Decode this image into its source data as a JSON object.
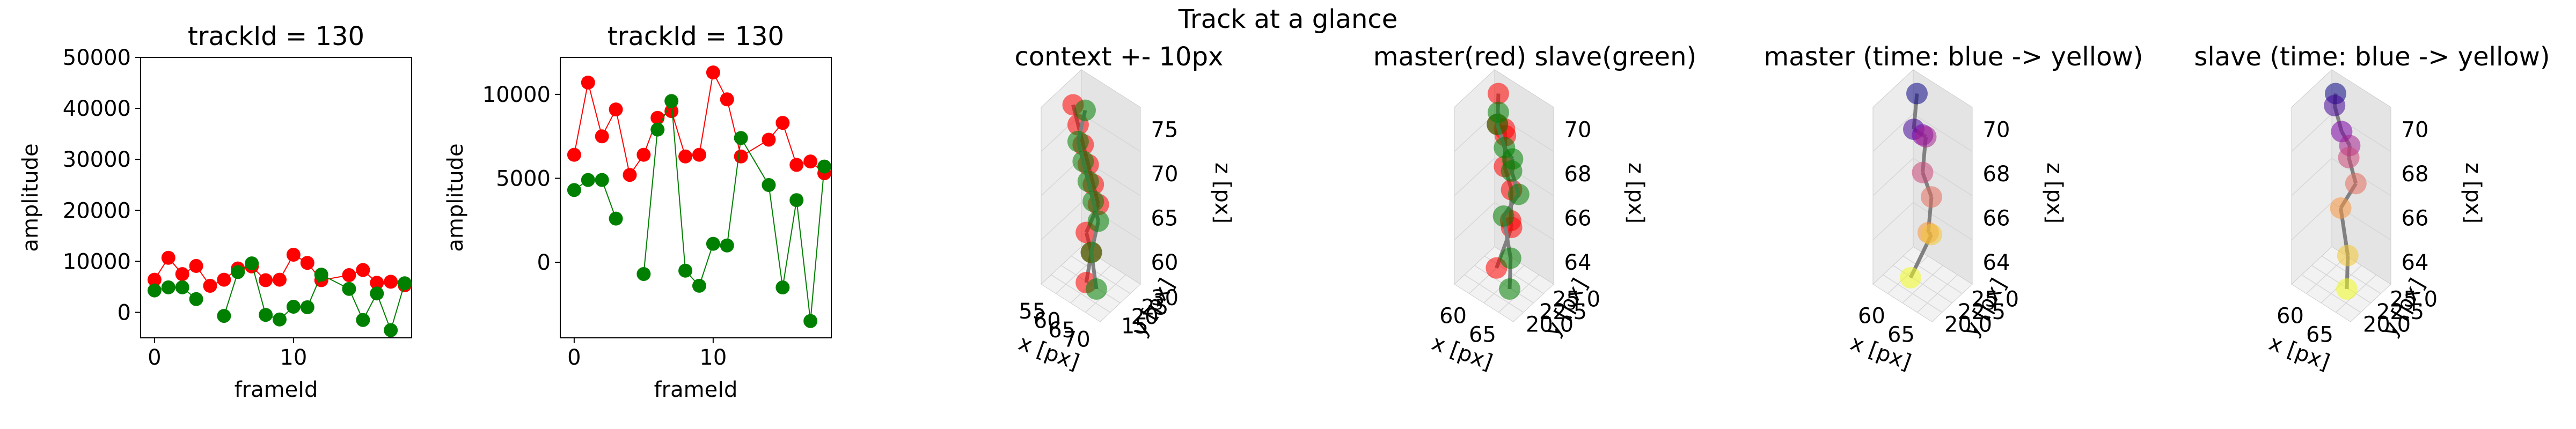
{
  "figure": {
    "title": "Track at a glance"
  },
  "chart_data": [
    {
      "type": "line",
      "title": "trackId = 130",
      "xlabel": "frameId",
      "ylabel": "amplitude",
      "xlim": [
        -1,
        18.5
      ],
      "ylim": [
        -5000,
        50000
      ],
      "xticks": [
        0,
        10
      ],
      "yticks": [
        0,
        10000,
        20000,
        30000,
        40000,
        50000
      ],
      "grid": false,
      "series": [
        {
          "color": "#ff0000",
          "x": [
            0,
            1,
            2,
            3,
            4,
            5,
            6,
            7,
            8,
            9,
            10,
            11,
            12,
            14,
            15,
            16,
            17,
            18
          ],
          "y": [
            6400,
            10700,
            7500,
            9100,
            5200,
            6400,
            8600,
            9000,
            6300,
            6400,
            11300,
            9700,
            6300,
            7300,
            8300,
            5800,
            6000,
            5300
          ]
        },
        {
          "color": "#008000",
          "x": [
            0,
            1,
            2,
            3,
            4,
            5,
            6,
            7,
            8,
            9,
            10,
            11,
            12,
            14,
            15,
            16,
            17,
            18
          ],
          "y": [
            4300,
            4900,
            4900,
            2600,
            null,
            -700,
            7900,
            9600,
            -500,
            -1400,
            1100,
            1000,
            7400,
            4600,
            -1500,
            3700,
            -3500,
            5700
          ]
        }
      ]
    },
    {
      "type": "line",
      "title": "trackId = 130",
      "xlabel": "frameId",
      "ylabel": "amplitude",
      "xlim": [
        -1,
        18.5
      ],
      "ylim": [
        -4500,
        12200
      ],
      "xticks": [
        0,
        10
      ],
      "yticks": [
        0,
        5000,
        10000
      ],
      "grid": false,
      "series": [
        {
          "color": "#ff0000",
          "x": [
            0,
            1,
            2,
            3,
            4,
            5,
            6,
            7,
            8,
            9,
            10,
            11,
            12,
            14,
            15,
            16,
            17,
            18
          ],
          "y": [
            6400,
            10700,
            7500,
            9100,
            5200,
            6400,
            8600,
            9000,
            6300,
            6400,
            11300,
            9700,
            6300,
            7300,
            8300,
            5800,
            6000,
            5300
          ]
        },
        {
          "color": "#008000",
          "x": [
            0,
            1,
            2,
            3,
            4,
            5,
            6,
            7,
            8,
            9,
            10,
            11,
            12,
            14,
            15,
            16,
            17,
            18
          ],
          "y": [
            4300,
            4900,
            4900,
            2600,
            null,
            -700,
            7900,
            9600,
            -500,
            -1400,
            1100,
            1000,
            7400,
            4600,
            -1500,
            3700,
            -3500,
            5700
          ]
        }
      ]
    },
    {
      "type": "scatter3d",
      "title": "context +- 10px",
      "xlabel": "x [px]",
      "ylabel": "y [px]",
      "zlabel": "z [px]",
      "xticks": [
        "55",
        "60",
        "65",
        "70"
      ],
      "yticks": [
        "15",
        "20",
        "25",
        "30"
      ],
      "zticks": [
        "60",
        "65",
        "70",
        "75"
      ],
      "series": [
        {
          "name": "",
          "color": "#ff0000",
          "points": [
            [
              59,
              22,
              71
            ],
            [
              60,
              22,
              70
            ],
            [
              61,
              22,
              69
            ],
            [
              62,
              22,
              68
            ],
            [
              63,
              22,
              67
            ],
            [
              64,
              22,
              66
            ],
            [
              64,
              21,
              65
            ],
            [
              65,
              21,
              64
            ],
            [
              64,
              21,
              62
            ]
          ]
        },
        {
          "name": "",
          "color": "#008000",
          "points": [
            [
              59,
              23,
              70
            ],
            [
              60,
              22,
              69
            ],
            [
              61,
              22,
              68
            ],
            [
              62,
              22,
              67
            ],
            [
              63,
              22,
              66
            ],
            [
              64,
              22,
              65
            ],
            [
              65,
              21,
              64
            ],
            [
              66,
              21,
              62
            ]
          ]
        }
      ]
    },
    {
      "type": "scatter3d",
      "title": "master(red) slave(green)",
      "xlabel": "x [px]",
      "ylabel": "y [px]",
      "zlabel": "z [px]",
      "xticks": [
        "60",
        "65"
      ],
      "yticks": [
        "20.0",
        "22.5",
        "25.0"
      ],
      "zticks": [
        "64",
        "66",
        "68",
        "70"
      ],
      "series": [
        {
          "name": "master",
          "color": "#ff0000",
          "points": [
            [
              60,
              23,
              71
            ],
            [
              61,
              22,
              70
            ],
            [
              62,
              22,
              70
            ],
            [
              61,
              23,
              69
            ],
            [
              62,
              22,
              68
            ],
            [
              63,
              22,
              67
            ],
            [
              64,
              21,
              66
            ],
            [
              63,
              22,
              65
            ],
            [
              62,
              21,
              63
            ]
          ]
        },
        {
          "name": "slave",
          "color": "#008000",
          "points": [
            [
              60,
              23,
              70
            ],
            [
              61,
              22,
              70
            ],
            [
              62,
              22,
              69
            ],
            [
              62,
              23,
              68
            ],
            [
              63,
              22,
              68
            ],
            [
              64,
              22,
              67
            ],
            [
              63,
              21,
              66
            ],
            [
              64,
              21,
              64
            ],
            [
              65,
              20,
              63
            ]
          ]
        }
      ]
    },
    {
      "type": "scatter3d",
      "title": "master (time: blue -> yellow)",
      "xlabel": "x [px]",
      "ylabel": "y [px]",
      "zlabel": "z [px]",
      "xticks": [
        "60",
        "65"
      ],
      "yticks": [
        "20.0",
        "22.5",
        "25.0"
      ],
      "zticks": [
        "64",
        "66",
        "68",
        "70"
      ],
      "series": [
        {
          "name": "master",
          "colormap": [
            "#0d0887",
            "#7e03a8",
            "#cc4778",
            "#f89540",
            "#f0f921"
          ],
          "points": [
            [
              60,
              23,
              71
            ],
            [
              61,
              22,
              70
            ],
            [
              62,
              22,
              70
            ],
            [
              61,
              23,
              69
            ],
            [
              62,
              22,
              68
            ],
            [
              63,
              22,
              67
            ],
            [
              64,
              21,
              66
            ],
            [
              63,
              22,
              65
            ],
            [
              62,
              21,
              63
            ]
          ]
        }
      ]
    },
    {
      "type": "scatter3d",
      "title": "slave (time: blue -> yellow)",
      "xlabel": "x [px]",
      "ylabel": "y [px]",
      "zlabel": "z [px]",
      "xticks": [
        "60",
        "65"
      ],
      "yticks": [
        "20.0",
        "22.5",
        "25.0"
      ],
      "zticks": [
        "64",
        "66",
        "68",
        "70"
      ],
      "series": [
        {
          "name": "slave",
          "colormap": [
            "#0d0887",
            "#7e03a8",
            "#cc4778",
            "#f89540",
            "#f0f921"
          ],
          "points": [
            [
              60,
              23,
              70
            ],
            [
              61,
              22,
              70
            ],
            [
              62,
              22,
              69
            ],
            [
              62,
              23,
              68
            ],
            [
              63,
              22,
              68
            ],
            [
              64,
              22,
              67
            ],
            [
              63,
              21,
              66
            ],
            [
              64,
              21,
              64
            ],
            [
              65,
              20,
              63
            ]
          ]
        }
      ]
    }
  ]
}
